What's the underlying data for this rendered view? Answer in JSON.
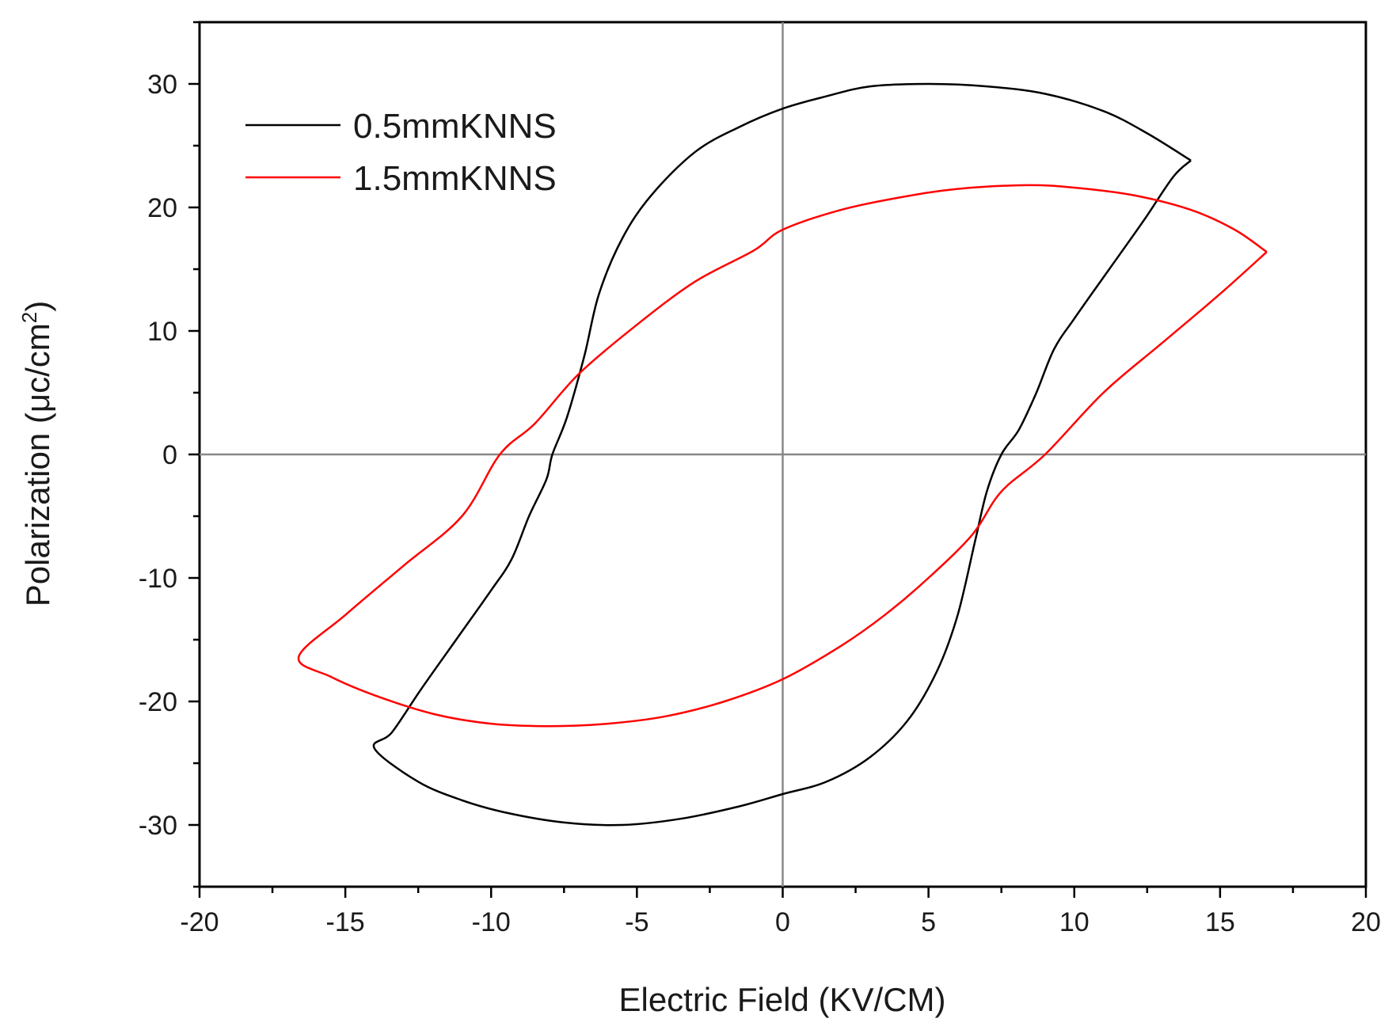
{
  "chart_data": {
    "type": "line",
    "title": "",
    "xlabel": "Electric Field (KV/CM)",
    "ylabel_main": "Polarization (μc/cm",
    "ylabel_sup": "2",
    "ylabel_close": ")",
    "xlim": [
      -20,
      20
    ],
    "ylim": [
      -35,
      35
    ],
    "x_ticks": [
      -20,
      -15,
      -10,
      -5,
      0,
      5,
      10,
      15,
      20
    ],
    "x_tick_labels": [
      "-20",
      "-15",
      "-10",
      "-5",
      "0",
      "5",
      "10",
      "15",
      "20"
    ],
    "y_ticks": [
      -30,
      -20,
      -10,
      0,
      10,
      20,
      30
    ],
    "y_tick_labels": [
      "-30",
      "-20",
      "-10",
      "0",
      "10",
      "20",
      "30"
    ],
    "grid": false,
    "zero_lines": true,
    "legend_position": "top-left",
    "series": [
      {
        "name": "0.5mmKNNS",
        "color": "#000000",
        "points": [
          [
            14.0,
            23.8
          ],
          [
            13.4,
            22.5
          ],
          [
            12.4,
            19.0
          ],
          [
            11.2,
            15.0
          ],
          [
            10.0,
            11.0
          ],
          [
            9.3,
            8.5
          ],
          [
            8.7,
            5.0
          ],
          [
            8.1,
            2.0
          ],
          [
            7.5,
            0.0
          ],
          [
            7.0,
            -3.0
          ],
          [
            6.6,
            -7.0
          ],
          [
            6.0,
            -13.0
          ],
          [
            5.3,
            -17.5
          ],
          [
            4.3,
            -21.5
          ],
          [
            3.0,
            -24.5
          ],
          [
            1.5,
            -26.5
          ],
          [
            0.0,
            -27.5
          ],
          [
            -1.5,
            -28.5
          ],
          [
            -3.5,
            -29.5
          ],
          [
            -5.5,
            -30.0
          ],
          [
            -7.5,
            -29.8
          ],
          [
            -9.5,
            -29.0
          ],
          [
            -11.0,
            -28.0
          ],
          [
            -12.5,
            -26.5
          ],
          [
            -14.0,
            -23.8
          ],
          [
            -13.4,
            -22.5
          ],
          [
            -12.4,
            -19.0
          ],
          [
            -11.2,
            -15.0
          ],
          [
            -10.0,
            -11.0
          ],
          [
            -9.3,
            -8.5
          ],
          [
            -8.7,
            -5.0
          ],
          [
            -8.1,
            -2.0
          ],
          [
            -7.9,
            0.0
          ],
          [
            -7.4,
            3.0
          ],
          [
            -6.8,
            8.0
          ],
          [
            -6.3,
            13.0
          ],
          [
            -5.5,
            17.5
          ],
          [
            -4.5,
            21.0
          ],
          [
            -3.0,
            24.5
          ],
          [
            -1.5,
            26.5
          ],
          [
            0.0,
            28.0
          ],
          [
            1.5,
            29.0
          ],
          [
            3.0,
            29.8
          ],
          [
            5.0,
            30.0
          ],
          [
            7.0,
            29.8
          ],
          [
            9.0,
            29.2
          ],
          [
            11.0,
            27.8
          ],
          [
            12.5,
            26.0
          ],
          [
            14.0,
            23.8
          ]
        ]
      },
      {
        "name": "1.5mmKNNS",
        "color": "#ff0000",
        "points": [
          [
            16.6,
            16.4
          ],
          [
            15.0,
            13.0
          ],
          [
            13.0,
            9.0
          ],
          [
            11.0,
            5.0
          ],
          [
            9.0,
            0.0
          ],
          [
            7.5,
            -3.0
          ],
          [
            6.5,
            -6.5
          ],
          [
            5.0,
            -10.0
          ],
          [
            3.5,
            -13.0
          ],
          [
            2.0,
            -15.5
          ],
          [
            0.0,
            -18.2
          ],
          [
            -2.0,
            -20.0
          ],
          [
            -4.0,
            -21.2
          ],
          [
            -6.0,
            -21.8
          ],
          [
            -8.0,
            -22.0
          ],
          [
            -10.0,
            -21.8
          ],
          [
            -12.0,
            -21.0
          ],
          [
            -14.0,
            -19.5
          ],
          [
            -15.5,
            -18.0
          ],
          [
            -16.6,
            -16.4
          ],
          [
            -15.0,
            -13.0
          ],
          [
            -13.0,
            -9.0
          ],
          [
            -11.0,
            -5.0
          ],
          [
            -9.7,
            0.0
          ],
          [
            -8.5,
            2.5
          ],
          [
            -7.0,
            6.5
          ],
          [
            -5.0,
            10.5
          ],
          [
            -3.0,
            14.0
          ],
          [
            -1.0,
            16.5
          ],
          [
            0.0,
            18.2
          ],
          [
            2.0,
            19.8
          ],
          [
            4.0,
            20.8
          ],
          [
            6.0,
            21.5
          ],
          [
            8.4,
            21.8
          ],
          [
            10.0,
            21.6
          ],
          [
            12.0,
            21.0
          ],
          [
            14.0,
            19.8
          ],
          [
            15.5,
            18.2
          ],
          [
            16.6,
            16.4
          ]
        ]
      }
    ]
  }
}
